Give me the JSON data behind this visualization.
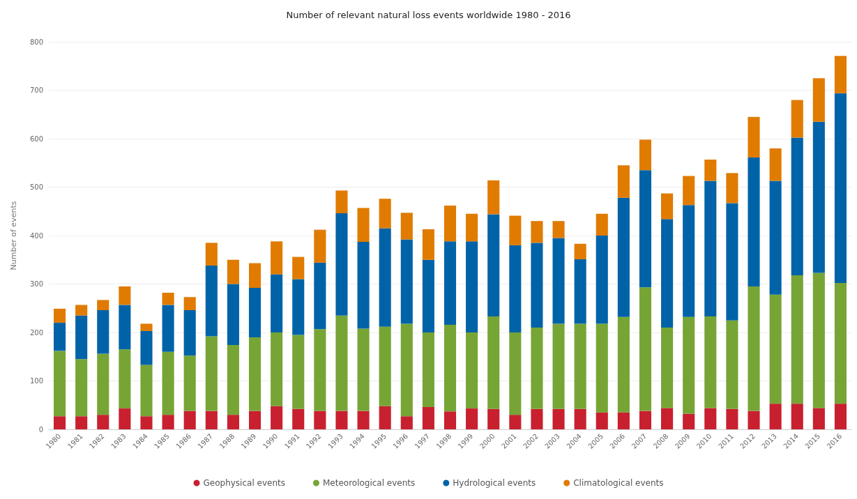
{
  "chart_data": {
    "type": "bar",
    "title": "Number of relevant natural loss events worldwide 1980 - 2016",
    "ylabel": "Number of events",
    "categories": [
      "1980",
      "1981",
      "1982",
      "1983",
      "1984",
      "1985",
      "1986",
      "1987",
      "1988",
      "1989",
      "1990",
      "1991",
      "1992",
      "1993",
      "1994",
      "1995",
      "1996",
      "1997",
      "1998",
      "1999",
      "2000",
      "2001",
      "2002",
      "2003",
      "2004",
      "2005",
      "2006",
      "2007",
      "2008",
      "2009",
      "2010",
      "2011",
      "2012",
      "2013",
      "2014",
      "2015",
      "2016"
    ],
    "stacked": true,
    "ylim": [
      0,
      800
    ],
    "yticks": [
      0,
      100,
      200,
      300,
      400,
      500,
      600,
      700,
      800
    ],
    "grid": "y",
    "legend": "bottom",
    "series": [
      {
        "name": "Geophysical events",
        "color": "#c8202f",
        "values": [
          27,
          27,
          30,
          43,
          27,
          30,
          38,
          38,
          30,
          38,
          48,
          42,
          38,
          38,
          38,
          48,
          27,
          46,
          37,
          43,
          42,
          30,
          42,
          42,
          42,
          35,
          35,
          38,
          44,
          32,
          44,
          42,
          38,
          53,
          53,
          44,
          53
        ]
      },
      {
        "name": "Meteorological events",
        "color": "#76a535",
        "values": [
          135,
          118,
          126,
          122,
          106,
          130,
          114,
          154,
          144,
          152,
          152,
          153,
          169,
          197,
          170,
          164,
          191,
          154,
          179,
          157,
          191,
          170,
          168,
          176,
          176,
          183,
          197,
          255,
          166,
          200,
          189,
          183,
          257,
          225,
          265,
          279,
          249
        ]
      },
      {
        "name": "Hydrological events",
        "color": "#0063a8",
        "values": [
          58,
          90,
          90,
          92,
          70,
          97,
          94,
          146,
          126,
          102,
          120,
          115,
          137,
          211,
          179,
          203,
          174,
          150,
          172,
          188,
          211,
          180,
          175,
          177,
          133,
          182,
          246,
          242,
          224,
          231,
          280,
          242,
          266,
          235,
          284,
          312,
          392
        ]
      },
      {
        "name": "Climatological events",
        "color": "#e07b00",
        "values": [
          29,
          22,
          21,
          38,
          15,
          25,
          27,
          47,
          50,
          51,
          68,
          46,
          68,
          47,
          70,
          61,
          55,
          63,
          74,
          57,
          70,
          61,
          45,
          35,
          32,
          45,
          67,
          63,
          53,
          60,
          44,
          62,
          84,
          67,
          78,
          90,
          77
        ]
      }
    ]
  }
}
